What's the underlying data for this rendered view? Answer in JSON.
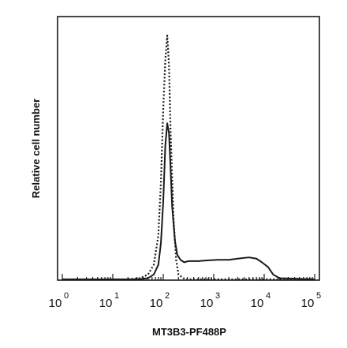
{
  "chart_data": {
    "type": "line",
    "title": "",
    "xlabel": "MT3B3-PF488P",
    "ylabel": "Relative cell number",
    "x_scale": "log",
    "xlim": [
      1,
      100000
    ],
    "ylim": [
      0,
      100
    ],
    "x_tick_labels": [
      {
        "value": 1,
        "base": "10",
        "exp": "0"
      },
      {
        "value": 10,
        "base": "10",
        "exp": "1"
      },
      {
        "value": 100,
        "base": "10",
        "exp": "2"
      },
      {
        "value": 1000,
        "base": "10",
        "exp": "3"
      },
      {
        "value": 10000,
        "base": "10",
        "exp": "4"
      },
      {
        "value": 100000,
        "base": "10",
        "exp": "5"
      }
    ],
    "grid": false,
    "legend": "none",
    "series": [
      {
        "style": "dotted",
        "color": "#1a1a1a",
        "x": [
          1,
          20,
          35,
          50,
          65,
          80,
          90,
          100,
          110,
          120,
          130,
          140,
          160,
          180,
          200,
          250,
          300,
          400,
          100000
        ],
        "y": [
          0,
          0,
          0.5,
          2,
          6,
          18,
          40,
          70,
          90,
          100,
          88,
          60,
          25,
          8,
          2,
          0.5,
          0,
          0,
          0
        ]
      },
      {
        "style": "solid",
        "color": "#1a1a1a",
        "x": [
          1,
          30,
          50,
          65,
          80,
          90,
          100,
          110,
          120,
          130,
          140,
          150,
          170,
          190,
          220,
          260,
          320,
          500,
          800,
          1200,
          2000,
          3000,
          4000,
          5000,
          7000,
          9000,
          12000,
          15000,
          20000,
          100000
        ],
        "y": [
          0,
          0,
          0.5,
          2,
          6,
          15,
          32,
          55,
          64,
          60,
          45,
          30,
          16,
          10,
          8,
          7,
          7.5,
          7.5,
          7.8,
          8,
          8,
          8.5,
          8.8,
          9,
          8.5,
          7,
          5,
          2,
          0.5,
          0
        ]
      }
    ]
  }
}
